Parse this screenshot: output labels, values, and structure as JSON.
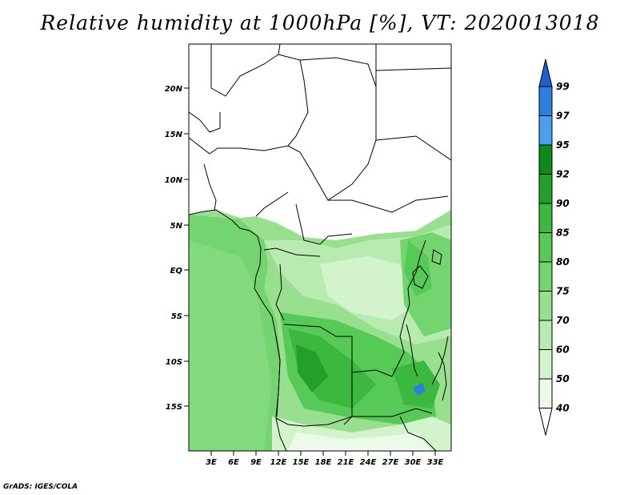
{
  "title": "Relative humidity at 1000hPa [%], VT: 2020013018",
  "credit": "GrADS: IGES/COLA",
  "map": {
    "lat_labels": [
      "20N",
      "15N",
      "10N",
      "5N",
      "EQ",
      "5S",
      "10S",
      "15S"
    ],
    "lon_labels": [
      "3E",
      "6E",
      "9E",
      "12E",
      "15E",
      "18E",
      "21E",
      "24E",
      "27E",
      "30E",
      "33E"
    ]
  },
  "colorbar": {
    "levels": [
      "99",
      "97",
      "95",
      "92",
      "90",
      "85",
      "80",
      "75",
      "70",
      "60",
      "50",
      "40"
    ],
    "colors": [
      "#1e5fd0",
      "#2f7fe0",
      "#4aa0ee",
      "#0f8a1a",
      "#23a02a",
      "#3db83f",
      "#56c956",
      "#74d470",
      "#98e08f",
      "#b7ebaf",
      "#d3f3cd",
      "#ecfaea",
      "#ffffff"
    ]
  }
}
